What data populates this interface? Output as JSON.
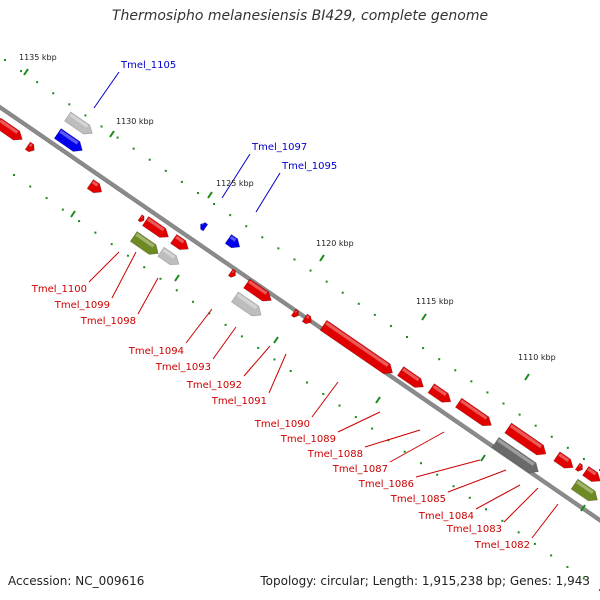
{
  "title": "Thermosipho melanesiensis BI429, complete genome",
  "footer": {
    "accession": "Accession: NC_009616",
    "topology": "Topology: circular; Length: 1,915,238 bp; Genes: 1,943"
  },
  "colors": {
    "backbone": "#8a8a8a",
    "forward_gene": "#e00000",
    "label_forward": "#cc0000",
    "label_reverse": "#0000cc",
    "reverse_gene": "#0000ee",
    "grey_gene": "#bdbdbd",
    "dark_grey_gene": "#6a6a6a",
    "olive_gene": "#6e8a22",
    "tick": "#1a8a1a"
  },
  "ticks": [
    "1135 kbp",
    "1130 kbp",
    "1125 kbp",
    "1120 kbp",
    "1115 kbp",
    "1110 kbp"
  ],
  "gene_labels": {
    "reverse": [
      "Tmel_1105",
      "Tmel_1097",
      "Tmel_1095"
    ],
    "forward": [
      "Tmel_1100",
      "Tmel_1099",
      "Tmel_1098",
      "Tmel_1094",
      "Tmel_1093",
      "Tmel_1092",
      "Tmel_1091",
      "Tmel_1090",
      "Tmel_1089",
      "Tmel_1088",
      "Tmel_1087",
      "Tmel_1086",
      "Tmel_1085",
      "Tmel_1084",
      "Tmel_1083",
      "Tmel_1082"
    ]
  }
}
